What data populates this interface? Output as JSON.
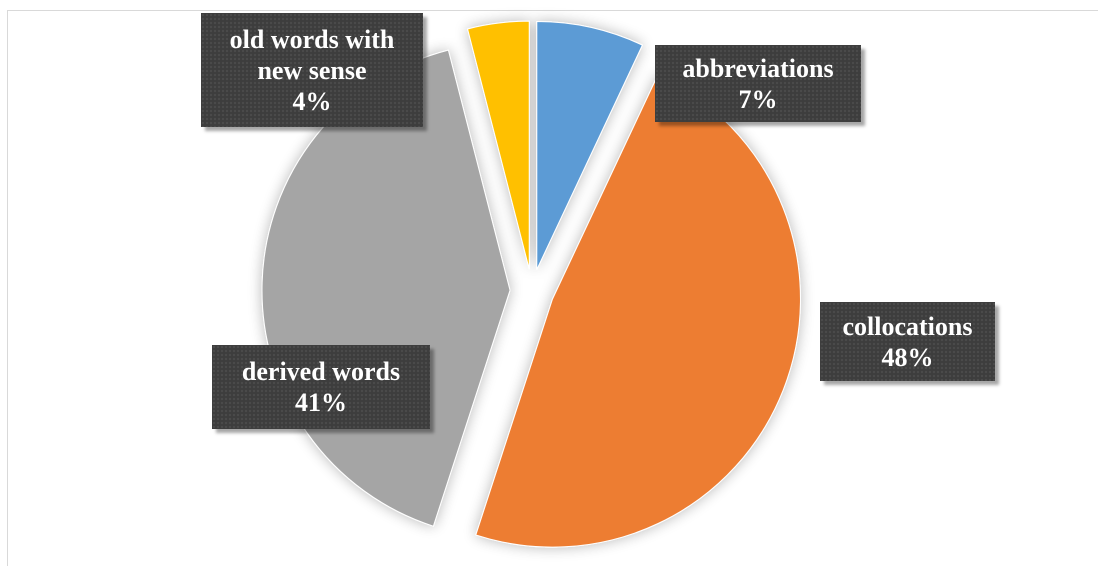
{
  "chart_data": {
    "type": "pie",
    "title": "",
    "slices": [
      {
        "label": "abbreviations",
        "value": 7,
        "display": "7%",
        "color": "#5B9BD5",
        "exploded": true
      },
      {
        "label": "collocations",
        "value": 48,
        "display": "48%",
        "color": "#ED7D31",
        "exploded": true
      },
      {
        "label": "derived words",
        "value": 41,
        "display": "41%",
        "color": "#A5A5A5",
        "exploded": true
      },
      {
        "label": "old words with new sense",
        "label_lines": [
          "old words with",
          "new sense"
        ],
        "value": 4,
        "display": "4%",
        "color": "#FFC000",
        "exploded": true
      }
    ],
    "start_angle": "12 o'clock",
    "direction": "clockwise",
    "data_labels": "callouts with category name and percentage",
    "legend": "none"
  }
}
